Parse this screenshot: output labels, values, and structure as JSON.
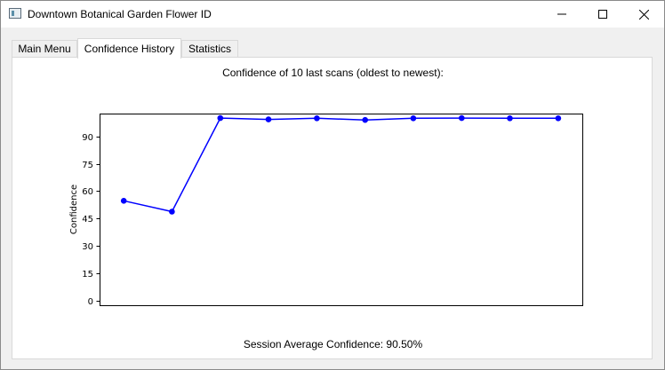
{
  "window": {
    "title": "Downtown Botanical Garden Flower ID"
  },
  "tabs": [
    {
      "label": "Main Menu",
      "active": false
    },
    {
      "label": "Confidence History",
      "active": true
    },
    {
      "label": "Statistics",
      "active": false
    }
  ],
  "panel": {
    "heading": "Confidence of 10 last scans (oldest to newest):",
    "session_average": "Session Average Confidence: 90.50%"
  },
  "chart_data": {
    "type": "line",
    "title": "",
    "xlabel": "",
    "ylabel": "Confidence",
    "x": [
      1,
      2,
      3,
      4,
      5,
      6,
      7,
      8,
      9,
      10
    ],
    "series": [
      {
        "values": [
          54.7,
          48.8,
          100.0,
          99.3,
          99.9,
          99.0,
          99.9,
          100.0,
          99.9,
          99.9
        ],
        "color": "#0000ff"
      }
    ],
    "ylim": [
      -2.5,
      102.5
    ],
    "xlim": [
      0.5,
      10.5
    ],
    "yticks": [
      0,
      15,
      30,
      45,
      60,
      75,
      90
    ],
    "xticks": [],
    "grid": false,
    "legend": "none"
  }
}
